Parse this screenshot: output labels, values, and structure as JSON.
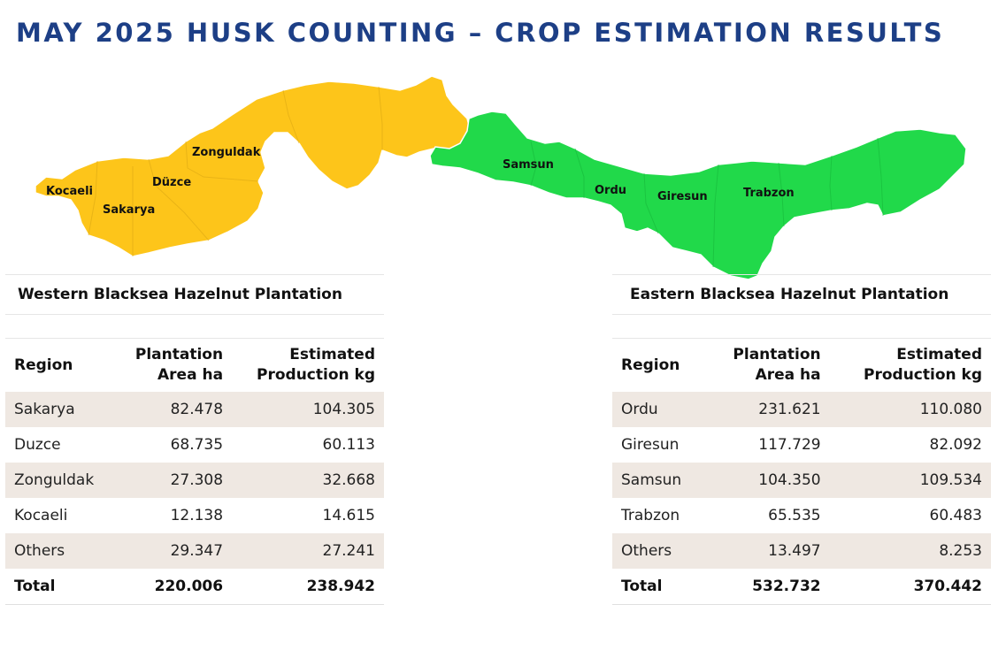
{
  "title": "MAY 2025 HUSK COUNTING – CROP ESTIMATION RESULTS",
  "map": {
    "west_color": "#fdc51a",
    "east_color": "#21d94a",
    "labels": [
      "Kocaeli",
      "Sakarya",
      "Düzce",
      "Zonguldak",
      "Samsun",
      "Ordu",
      "Giresun",
      "Trabzon"
    ]
  },
  "west_table": {
    "title": "Western Blacksea Hazelnut Plantation",
    "headers": [
      "Region",
      [
        "Plantation",
        "Area ha"
      ],
      [
        "Estimated",
        "Production kg"
      ]
    ],
    "rows": [
      [
        "Sakarya",
        "82.478",
        "104.305"
      ],
      [
        "Duzce",
        "68.735",
        "60.113"
      ],
      [
        "Zonguldak",
        "27.308",
        "32.668"
      ],
      [
        "Kocaeli",
        "12.138",
        "14.615"
      ],
      [
        "Others",
        "29.347",
        "27.241"
      ]
    ],
    "total": [
      "Total",
      "220.006",
      "238.942"
    ]
  },
  "east_table": {
    "title": "Eastern Blacksea Hazelnut Plantation",
    "headers": [
      "Region",
      [
        "Plantation",
        "Area ha"
      ],
      [
        "Estimated",
        "Production kg"
      ]
    ],
    "rows": [
      [
        "Ordu",
        "231.621",
        "110.080"
      ],
      [
        "Giresun",
        "117.729",
        "82.092"
      ],
      [
        "Samsun",
        "104.350",
        "109.534"
      ],
      [
        "Trabzon",
        "65.535",
        "60.483"
      ],
      [
        "Others",
        "13.497",
        "8.253"
      ]
    ],
    "total": [
      "Total",
      "532.732",
      "370.442"
    ]
  },
  "row_stripe_color": "#efe8e2"
}
